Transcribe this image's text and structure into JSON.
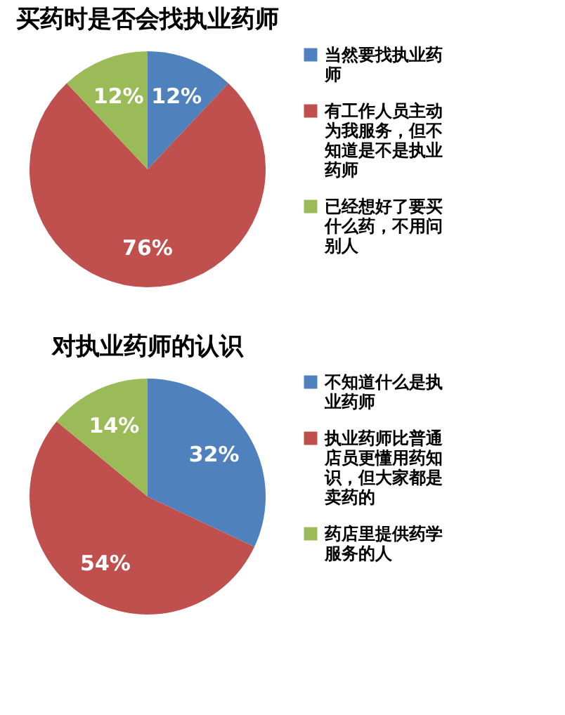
{
  "chart_data": [
    {
      "type": "pie",
      "title": "买药时是否会找执业药师",
      "categories": [
        "当然要找执业药师",
        "有工作人员主动为我服务，但不知道是不是执业药师",
        "已经想好了要买什么药，不用问别人"
      ],
      "values": [
        12,
        76,
        12
      ],
      "colors": [
        "#4f81bd",
        "#c0504d",
        "#9bbb59"
      ],
      "value_labels": [
        "12%",
        "76%",
        "12%"
      ],
      "legend": "right"
    },
    {
      "type": "pie",
      "title": "对执业药师的认识",
      "categories": [
        "不知道什么是执业药师",
        "执业药师比普通店员更懂用药知识，但大家都是卖药的",
        "药店里提供药学服务的人"
      ],
      "values": [
        32,
        54,
        14
      ],
      "colors": [
        "#4f81bd",
        "#c0504d",
        "#9bbb59"
      ],
      "value_labels": [
        "32%",
        "54%",
        "14%"
      ],
      "legend": "right"
    }
  ]
}
